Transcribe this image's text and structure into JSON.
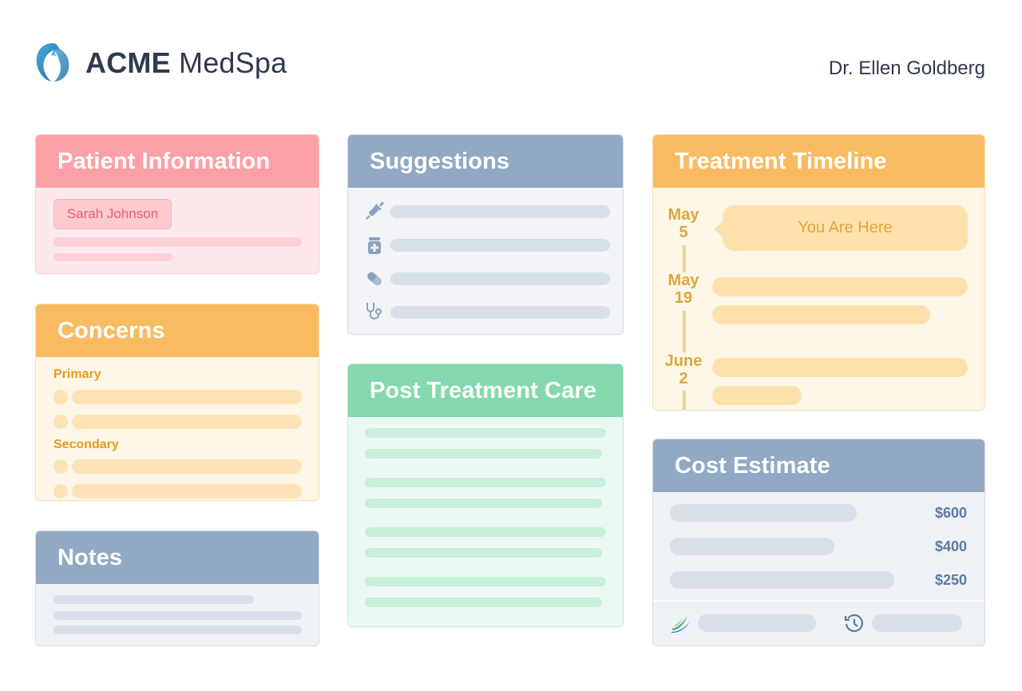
{
  "header": {
    "brand_bold": "ACME",
    "brand_rest": "MedSpa",
    "doctor_name": "Dr. Ellen Goldberg",
    "logo_icon": "woman-profile-logo-icon"
  },
  "patient": {
    "title": "Patient Information",
    "name": "Sarah Johnson"
  },
  "concerns": {
    "title": "Concerns",
    "primary_label": "Primary",
    "secondary_label": "Secondary"
  },
  "notes": {
    "title": "Notes"
  },
  "suggestions": {
    "title": "Suggestions",
    "icons": [
      "syringe-icon",
      "medicine-jar-icon",
      "pill-icon",
      "stethoscope-icon"
    ]
  },
  "post_care": {
    "title": "Post Treatment Care"
  },
  "timeline": {
    "title": "Treatment Timeline",
    "entries": [
      {
        "month": "May",
        "day": "5",
        "note": "You Are Here"
      },
      {
        "month": "May",
        "day": "19"
      },
      {
        "month": "June",
        "day": "2"
      }
    ]
  },
  "cost": {
    "title": "Cost Estimate",
    "prices": [
      "$600",
      "$400",
      "$250"
    ],
    "footer_icons": [
      "leaf-logo-icon",
      "history-icon"
    ]
  },
  "colors": {
    "pink_header": "#fba0a5",
    "orange_header": "#f9bb62",
    "slate_header": "#91a9c3",
    "green_header": "#84d8ae",
    "text_dark": "#2e3a4d"
  }
}
